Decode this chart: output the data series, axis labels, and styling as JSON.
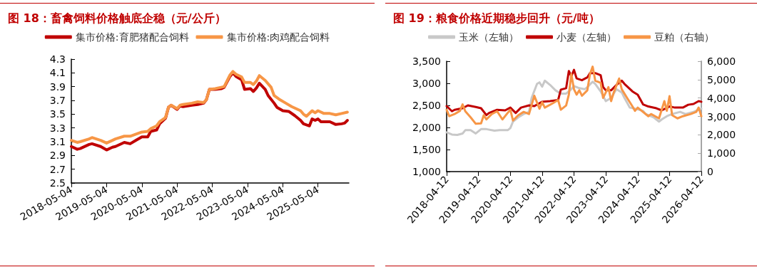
{
  "chart_data": [
    {
      "type": "line",
      "title": "图 18：畜禽饲料价格触底企稳（元/公斤）",
      "legend": "top",
      "grid": false,
      "xlim": [
        "2018-05-04",
        "2026-03-20"
      ],
      "xticks": [
        "2018-05-04",
        "2019-05-04",
        "2020-05-04",
        "2021-05-04",
        "2022-05-04",
        "2023-05-04",
        "2024-05-04",
        "2025-05-04"
      ],
      "ylim": [
        2.5,
        4.3
      ],
      "yticks": [
        2.5,
        2.7,
        2.9,
        3.1,
        3.3,
        3.5,
        3.7,
        3.9,
        4.1,
        4.3
      ],
      "series": [
        {
          "name": "集市价格:育肥猪配合饲料",
          "color": "#c00000",
          "x": [
            "2018-05-04",
            "2018-07-04",
            "2018-08-04",
            "2018-11-04",
            "2018-12-04",
            "2019-03-04",
            "2019-05-04",
            "2019-07-04",
            "2019-08-04",
            "2019-11-04",
            "2020-01-04",
            "2020-03-04",
            "2020-05-04",
            "2020-07-04",
            "2020-08-04",
            "2020-10-04",
            "2020-11-04",
            "2021-01-04",
            "2021-02-04",
            "2021-03-04",
            "2021-05-04",
            "2021-06-04",
            "2021-07-04",
            "2021-10-04",
            "2021-12-04",
            "2022-02-04",
            "2022-03-04",
            "2022-04-04",
            "2022-06-04",
            "2022-08-04",
            "2022-09-04",
            "2022-11-04",
            "2022-12-04",
            "2023-01-04",
            "2023-03-04",
            "2023-04-04",
            "2023-06-04",
            "2023-07-04",
            "2023-08-04",
            "2023-09-04",
            "2023-11-04",
            "2023-12-04",
            "2024-02-04",
            "2024-03-04",
            "2024-05-04",
            "2024-07-04",
            "2024-09-04",
            "2024-11-04",
            "2024-12-04",
            "2025-02-04",
            "2025-03-04",
            "2025-04-04",
            "2025-05-04",
            "2025-06-04",
            "2025-09-04",
            "2025-11-04",
            "2026-01-04",
            "2026-02-04",
            "2026-03-04"
          ],
          "values": [
            3.03,
            2.99,
            3.0,
            3.06,
            3.07,
            3.03,
            2.98,
            3.02,
            3.03,
            3.09,
            3.07,
            3.12,
            3.17,
            3.17,
            3.25,
            3.27,
            3.36,
            3.44,
            3.6,
            3.63,
            3.57,
            3.62,
            3.61,
            3.63,
            3.64,
            3.66,
            3.71,
            3.86,
            3.86,
            3.87,
            3.89,
            4.05,
            4.1,
            4.05,
            4.0,
            3.86,
            3.87,
            3.83,
            3.88,
            3.95,
            3.86,
            3.77,
            3.66,
            3.6,
            3.55,
            3.54,
            3.48,
            3.41,
            3.36,
            3.33,
            3.43,
            3.41,
            3.43,
            3.39,
            3.39,
            3.35,
            3.36,
            3.37,
            3.41
          ]
        },
        {
          "name": "集市价格:肉鸡配合饲料",
          "color": "#f79646",
          "x": [
            "2018-05-04",
            "2018-07-04",
            "2018-08-04",
            "2018-11-04",
            "2018-12-04",
            "2019-03-04",
            "2019-05-04",
            "2019-07-04",
            "2019-08-04",
            "2019-11-04",
            "2020-01-04",
            "2020-03-04",
            "2020-05-04",
            "2020-07-04",
            "2020-08-04",
            "2020-10-04",
            "2020-11-04",
            "2021-01-04",
            "2021-02-04",
            "2021-03-04",
            "2021-05-04",
            "2021-06-04",
            "2021-07-04",
            "2021-10-04",
            "2021-12-04",
            "2022-02-04",
            "2022-03-04",
            "2022-04-04",
            "2022-06-04",
            "2022-08-04",
            "2022-09-04",
            "2022-11-04",
            "2022-12-04",
            "2023-01-04",
            "2023-03-04",
            "2023-04-04",
            "2023-06-04",
            "2023-07-04",
            "2023-08-04",
            "2023-09-04",
            "2023-11-04",
            "2024-01-04",
            "2024-02-04",
            "2024-04-04",
            "2024-06-04",
            "2024-08-04",
            "2024-11-04",
            "2024-12-04",
            "2025-01-04",
            "2025-03-04",
            "2025-04-04",
            "2025-05-04",
            "2025-07-04",
            "2025-09-04",
            "2025-11-04",
            "2026-01-04",
            "2026-03-04"
          ],
          "values": [
            3.12,
            3.09,
            3.1,
            3.14,
            3.16,
            3.12,
            3.08,
            3.12,
            3.14,
            3.18,
            3.18,
            3.21,
            3.24,
            3.25,
            3.29,
            3.33,
            3.39,
            3.45,
            3.6,
            3.63,
            3.58,
            3.63,
            3.64,
            3.66,
            3.68,
            3.67,
            3.71,
            3.86,
            3.87,
            3.89,
            3.9,
            4.07,
            4.12,
            4.08,
            4.04,
            3.96,
            3.96,
            3.93,
            3.98,
            4.06,
            3.99,
            3.89,
            3.77,
            3.71,
            3.66,
            3.61,
            3.55,
            3.5,
            3.47,
            3.55,
            3.52,
            3.55,
            3.51,
            3.51,
            3.49,
            3.51,
            3.53
          ]
        }
      ]
    },
    {
      "type": "line",
      "title": "图 19：粮食价格近期稳步回升（元/吨）",
      "legend": "top",
      "grid": false,
      "xlim": [
        "2018-04-12",
        "2026-04-12"
      ],
      "xticks": [
        "2018-04-12",
        "2019-04-12",
        "2020-04-12",
        "2021-04-12",
        "2022-04-12",
        "2023-04-12",
        "2024-04-12",
        "2025-04-12",
        "2026-04-12"
      ],
      "ylim": [
        1000,
        3500
      ],
      "yticks": [
        {
          "value": 1000,
          "label": "1,000"
        },
        {
          "value": 1500,
          "label": "1,500"
        },
        {
          "value": 2000,
          "label": "2,000"
        },
        {
          "value": 2500,
          "label": "2,500"
        },
        {
          "value": 3000,
          "label": "3,000"
        },
        {
          "value": 3500,
          "label": "3,500"
        }
      ],
      "y2lim": [
        0,
        6000
      ],
      "y2ticks": [
        0,
        {
          "value": 1000,
          "label": "1,000"
        },
        {
          "value": 2000,
          "label": "2,000"
        },
        {
          "value": 3000,
          "label": "3,000"
        },
        {
          "value": 4000,
          "label": "4,000"
        },
        {
          "value": 5000,
          "label": "5,000"
        },
        {
          "value": 6000,
          "label": "6,000"
        }
      ],
      "series": [
        {
          "name": "玉米（左轴）",
          "color": "#c8c8c8",
          "x": [
            "2018-04-12",
            "2018-06-12",
            "2018-08-12",
            "2018-10-12",
            "2018-11-12",
            "2019-01-12",
            "2019-03-12",
            "2019-05-12",
            "2019-07-12",
            "2019-10-12",
            "2019-12-12",
            "2020-03-12",
            "2020-04-12",
            "2020-05-12",
            "2020-07-12",
            "2020-09-12",
            "2020-11-12",
            "2020-12-12",
            "2021-02-12",
            "2021-03-12",
            "2021-04-12",
            "2021-05-12",
            "2021-07-12",
            "2021-09-12",
            "2021-11-12",
            "2022-01-12",
            "2022-03-12",
            "2022-04-12",
            "2022-06-12",
            "2022-08-12",
            "2022-09-12",
            "2022-11-12",
            "2022-12-12",
            "2023-02-12",
            "2023-04-12",
            "2023-06-12",
            "2023-08-12",
            "2023-10-12",
            "2023-11-12",
            "2024-01-12",
            "2024-03-12",
            "2024-06-12",
            "2024-07-12",
            "2024-10-12",
            "2024-12-12",
            "2025-01-12",
            "2025-03-12",
            "2025-05-12",
            "2025-08-12",
            "2025-10-12",
            "2026-01-12",
            "2026-03-12",
            "2026-04-12"
          ],
          "values": [
            1889,
            1840,
            1830,
            1864,
            1938,
            1938,
            1864,
            1962,
            1962,
            1928,
            1938,
            1938,
            1986,
            2133,
            2230,
            2304,
            2353,
            2670,
            2987,
            3021,
            2924,
            3060,
            2963,
            2841,
            2768,
            2768,
            2866,
            2939,
            2890,
            2866,
            2914,
            3036,
            2987,
            2816,
            2597,
            2670,
            2866,
            2792,
            2670,
            2450,
            2426,
            2377,
            2304,
            2230,
            2133,
            2182,
            2255,
            2304,
            2353,
            2304,
            2353,
            2401,
            2426
          ]
        },
        {
          "name": "小麦（左轴）",
          "color": "#c00000",
          "x": [
            "2018-04-12",
            "2018-06-12",
            "2018-07-12",
            "2018-10-12",
            "2018-12-12",
            "2019-03-12",
            "2019-05-12",
            "2019-07-12",
            "2019-08-12",
            "2019-11-12",
            "2020-02-12",
            "2020-04-12",
            "2020-06-12",
            "2020-08-12",
            "2020-11-12",
            "2021-01-12",
            "2021-04-12",
            "2021-07-12",
            "2021-10-12",
            "2021-11-12",
            "2022-01-12",
            "2022-02-12",
            "2022-03-12",
            "2022-04-12",
            "2022-05-12",
            "2022-07-12",
            "2022-09-12",
            "2022-10-12",
            "2022-12-12",
            "2023-02-12",
            "2023-03-12",
            "2023-04-12",
            "2023-06-12",
            "2023-08-12",
            "2023-10-12",
            "2023-11-12",
            "2024-02-12",
            "2024-04-12",
            "2024-06-12",
            "2024-08-12",
            "2024-11-12",
            "2025-01-12",
            "2025-04-12",
            "2025-06-12",
            "2025-09-12",
            "2025-11-12",
            "2026-01-12",
            "2026-03-12",
            "2026-04-12"
          ],
          "values": [
            2484,
            2367,
            2400,
            2435,
            2500,
            2465,
            2435,
            2279,
            2328,
            2400,
            2387,
            2450,
            2328,
            2450,
            2500,
            2484,
            2582,
            2597,
            2621,
            2856,
            2890,
            3280,
            3158,
            3305,
            3110,
            3070,
            3134,
            3231,
            3231,
            3183,
            2914,
            2841,
            2841,
            2963,
            3060,
            2987,
            2816,
            2743,
            2523,
            2475,
            2435,
            2387,
            2475,
            2450,
            2450,
            2514,
            2533,
            2597,
            2582
          ]
        },
        {
          "name": "豆粕（右轴）",
          "color": "#f79646",
          "axis": "y2",
          "x": [
            "2018-04-12",
            "2018-05-12",
            "2018-07-12",
            "2018-09-12",
            "2018-10-12",
            "2018-11-12",
            "2019-01-12",
            "2019-03-12",
            "2019-05-12",
            "2019-06-12",
            "2019-07-12",
            "2019-09-12",
            "2019-11-12",
            "2020-01-12",
            "2020-03-12",
            "2020-04-12",
            "2020-05-12",
            "2020-07-12",
            "2020-09-12",
            "2020-11-12",
            "2021-01-12",
            "2021-03-12",
            "2021-04-12",
            "2021-05-12",
            "2021-08-12",
            "2021-10-12",
            "2021-11-12",
            "2022-01-12",
            "2022-02-12",
            "2022-03-12",
            "2022-04-12",
            "2022-05-12",
            "2022-06-12",
            "2022-07-12",
            "2022-09-12",
            "2022-10-12",
            "2022-11-12",
            "2022-12-12",
            "2023-02-12",
            "2023-03-12",
            "2023-05-12",
            "2023-06-12",
            "2023-07-12",
            "2023-09-12",
            "2023-10-12",
            "2023-12-12",
            "2024-02-12",
            "2024-03-12",
            "2024-04-12",
            "2024-05-12",
            "2024-08-12",
            "2024-09-12",
            "2024-12-12",
            "2025-02-12",
            "2025-03-12",
            "2025-04-12",
            "2025-05-12",
            "2025-07-12",
            "2025-09-12",
            "2025-12-12",
            "2026-02-12",
            "2026-03-12",
            "2026-04-12"
          ],
          "values": [
            3363,
            3011,
            3129,
            3304,
            3656,
            3281,
            2953,
            2601,
            2625,
            3070,
            2836,
            3129,
            3281,
            2836,
            3187,
            3363,
            2777,
            3070,
            3246,
            3129,
            4125,
            3422,
            3773,
            3480,
            3715,
            3890,
            3363,
            3598,
            4184,
            5297,
            4477,
            4184,
            4418,
            4125,
            4418,
            5297,
            5707,
            4945,
            4828,
            4008,
            4594,
            3832,
            4301,
            5062,
            4477,
            4008,
            3539,
            3304,
            3480,
            3363,
            3011,
            3129,
            2894,
            3832,
            3304,
            4100,
            3070,
            2894,
            3011,
            3129,
            3246,
            3480,
            3011
          ]
        }
      ]
    }
  ]
}
